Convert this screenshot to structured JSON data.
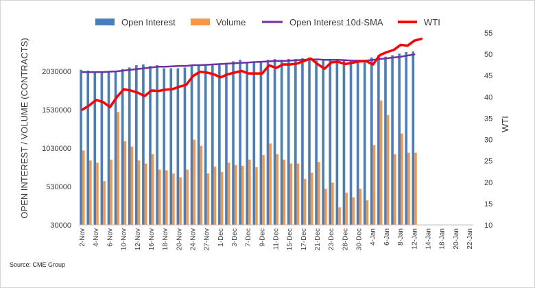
{
  "source_label": "Source: CME Group",
  "chart_data": {
    "type": "bar",
    "x_labels": [
      "2-Nov",
      "4-Nov",
      "6-Nov",
      "10-Nov",
      "12-Nov",
      "16-Nov",
      "18-Nov",
      "20-Nov",
      "24-Nov",
      "27-Nov",
      "1-Dec",
      "3-Dec",
      "7-Dec",
      "9-Dec",
      "11-Dec",
      "15-Dec",
      "17-Dec",
      "21-Dec",
      "23-Dec",
      "28-Dec",
      "30-Dec",
      "4-Jan",
      "6-Jan",
      "8-Jan",
      "12-Jan",
      "14-Jan",
      "18-Jan",
      "20-Jan",
      "22-Jan"
    ],
    "categories": [
      "2-Nov",
      "3-Nov",
      "4-Nov",
      "5-Nov",
      "6-Nov",
      "9-Nov",
      "10-Nov",
      "11-Nov",
      "12-Nov",
      "13-Nov",
      "16-Nov",
      "17-Nov",
      "18-Nov",
      "19-Nov",
      "20-Nov",
      "23-Nov",
      "24-Nov",
      "25-Nov",
      "27-Nov",
      "30-Nov",
      "1-Dec",
      "2-Dec",
      "3-Dec",
      "4-Dec",
      "7-Dec",
      "8-Dec",
      "9-Dec",
      "10-Dec",
      "11-Dec",
      "14-Dec",
      "15-Dec",
      "16-Dec",
      "17-Dec",
      "18-Dec",
      "21-Dec",
      "22-Dec",
      "23-Dec",
      "24-Dec",
      "28-Dec",
      "29-Dec",
      "30-Dec",
      "31-Dec",
      "4-Jan",
      "5-Jan",
      "6-Jan",
      "7-Jan",
      "8-Jan",
      "11-Jan",
      "12-Jan",
      "13-Jan",
      "14-Jan",
      "15-Jan",
      "18-Jan",
      "19-Jan",
      "20-Jan",
      "21-Jan",
      "22-Jan"
    ],
    "series": [
      {
        "name": "Open Interest",
        "axis": "left",
        "kind": "bar",
        "color": "#4a7ebb",
        "values": [
          2050000,
          2040000,
          2030000,
          2020000,
          2020000,
          2030000,
          2060000,
          2080000,
          2110000,
          2120000,
          2100000,
          2110000,
          2070000,
          2070000,
          2070000,
          2080000,
          2110000,
          2110000,
          2120000,
          2120000,
          2130000,
          2140000,
          2160000,
          2180000,
          2150000,
          2160000,
          2160000,
          2180000,
          2190000,
          2180000,
          2190000,
          2190000,
          2200000,
          2210000,
          2170000,
          2170000,
          2180000,
          2180000,
          2170000,
          2160000,
          2160000,
          2170000,
          2210000,
          2240000,
          2220000,
          2240000,
          2260000,
          2280000,
          2290000,
          null,
          null,
          null,
          null,
          null,
          null,
          null,
          null
        ]
      },
      {
        "name": "Volume",
        "axis": "left",
        "kind": "bar",
        "color": "#f79646",
        "values": [
          1000000,
          870000,
          840000,
          600000,
          880000,
          1500000,
          1120000,
          1050000,
          870000,
          830000,
          950000,
          750000,
          740000,
          700000,
          650000,
          750000,
          1140000,
          1060000,
          700000,
          790000,
          720000,
          840000,
          810000,
          800000,
          880000,
          780000,
          940000,
          1090000,
          950000,
          880000,
          830000,
          830000,
          630000,
          710000,
          850000,
          500000,
          580000,
          260000,
          450000,
          390000,
          500000,
          350000,
          1070000,
          1650000,
          1460000,
          950000,
          1220000,
          970000,
          970000,
          null,
          null,
          null,
          null,
          null,
          null,
          null,
          null
        ]
      },
      {
        "name": "Open Interest 10d-SMA",
        "axis": "left",
        "kind": "line",
        "color": "#7030a0",
        "values": [
          2020000,
          2020000,
          2020000,
          2020000,
          2025000,
          2030000,
          2040000,
          2050000,
          2060000,
          2070000,
          2080000,
          2090000,
          2090000,
          2095000,
          2100000,
          2100000,
          2110000,
          2110000,
          2115000,
          2120000,
          2125000,
          2130000,
          2135000,
          2140000,
          2145000,
          2150000,
          2155000,
          2160000,
          2165000,
          2165000,
          2170000,
          2175000,
          2180000,
          2185000,
          2185000,
          2180000,
          2180000,
          2180000,
          2175000,
          2170000,
          2170000,
          2170000,
          2180000,
          2190000,
          2200000,
          2210000,
          2220000,
          2235000,
          2250000,
          null,
          null,
          null,
          null,
          null,
          null,
          null,
          null
        ]
      },
      {
        "name": "WTI",
        "axis": "right",
        "kind": "line",
        "color": "#ff0000",
        "values": [
          37.0,
          38.0,
          39.3,
          38.8,
          37.6,
          40.0,
          41.8,
          41.5,
          41.0,
          40.2,
          41.5,
          41.4,
          41.7,
          41.8,
          42.4,
          42.8,
          44.9,
          45.9,
          45.7,
          45.3,
          44.6,
          45.3,
          45.7,
          46.1,
          45.5,
          45.5,
          45.5,
          47.4,
          46.8,
          47.6,
          47.6,
          47.8,
          48.4,
          49.0,
          47.7,
          46.6,
          48.1,
          48.2,
          47.7,
          48.0,
          48.3,
          48.4,
          47.6,
          49.8,
          50.5,
          51.0,
          52.2,
          52.0,
          53.2,
          53.6,
          null,
          null,
          null,
          null,
          null,
          null,
          null
        ]
      }
    ],
    "left_axis": {
      "label": "OPEN INTEREST / VOLUME (CONTRACTS)",
      "min": 30000,
      "max": 2530000,
      "ticks": [
        "30000",
        "530000",
        "1030000",
        "1530000",
        "2030000"
      ]
    },
    "right_axis": {
      "label": "WTI",
      "min": 10,
      "max": 55,
      "ticks": [
        "10",
        "15",
        "20",
        "25",
        "30",
        "35",
        "40",
        "45",
        "50",
        "55"
      ]
    },
    "legend_position": "top",
    "grid": false
  }
}
